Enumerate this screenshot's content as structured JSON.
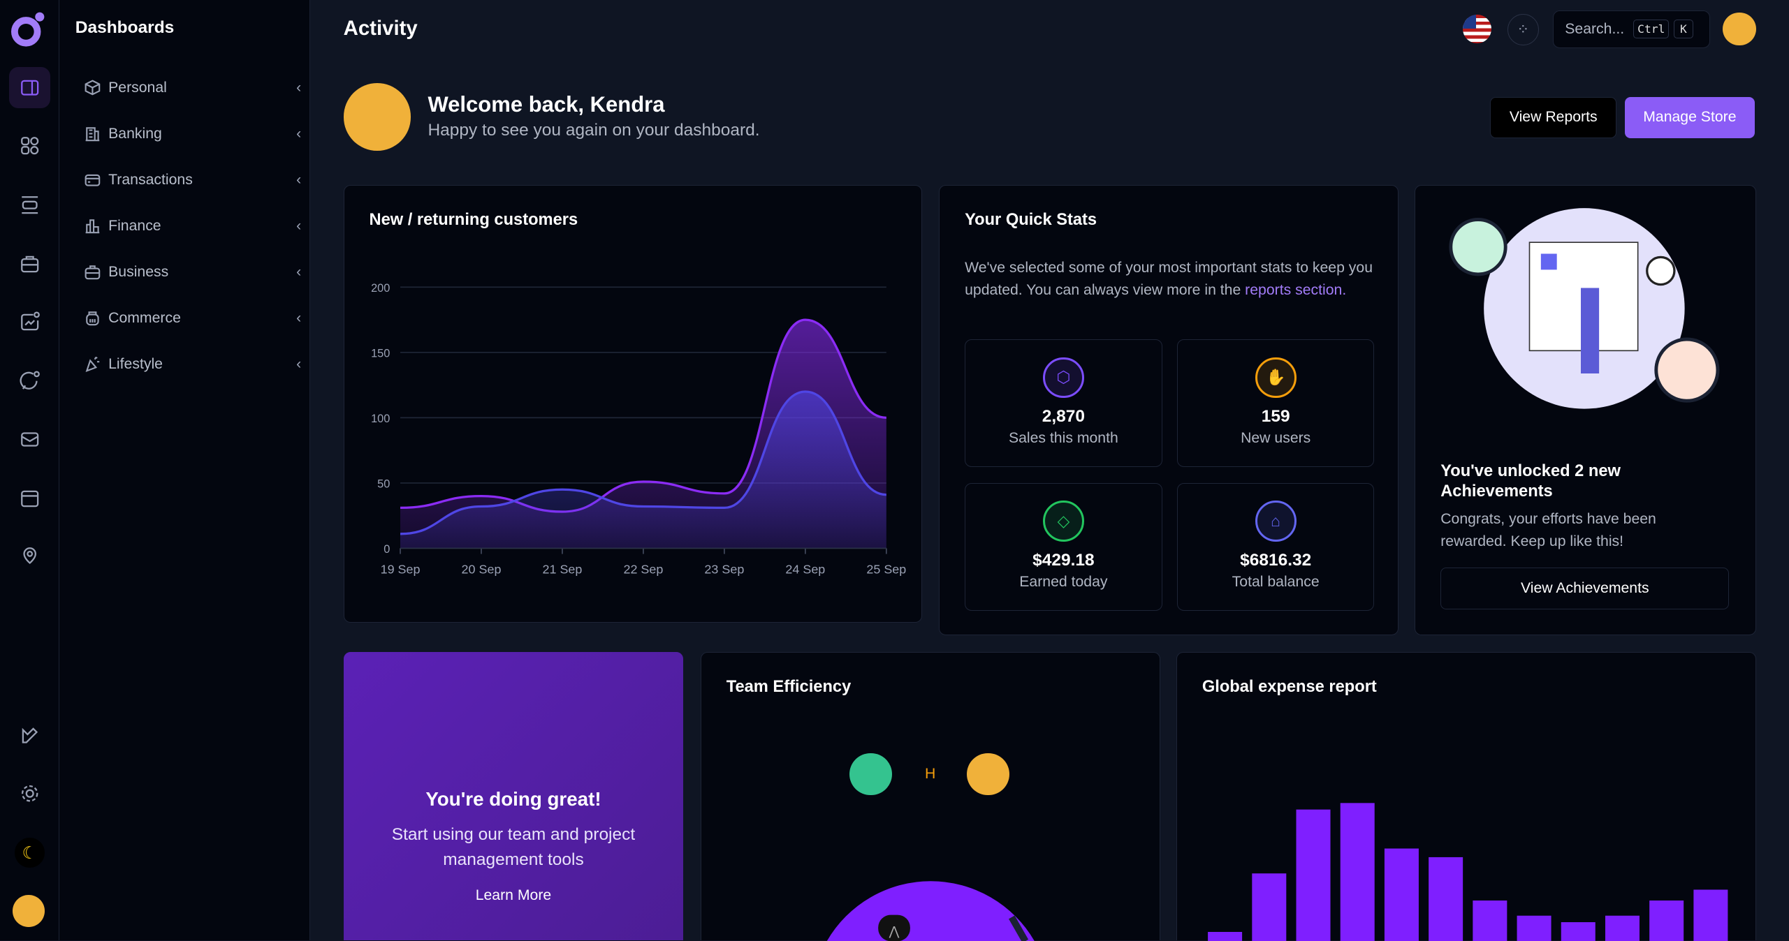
{
  "sidebar": {
    "title": "Dashboards",
    "items": [
      {
        "label": "Personal",
        "icon": "cube-icon"
      },
      {
        "label": "Banking",
        "icon": "building-icon"
      },
      {
        "label": "Transactions",
        "icon": "credit-card-icon"
      },
      {
        "label": "Finance",
        "icon": "bar-chart-icon"
      },
      {
        "label": "Business",
        "icon": "briefcase-icon"
      },
      {
        "label": "Commerce",
        "icon": "basket-icon"
      },
      {
        "label": "Lifestyle",
        "icon": "party-popper-icon"
      }
    ]
  },
  "header": {
    "title": "Activity",
    "search_placeholder": "Search...",
    "shortcut_ctrl": "Ctrl",
    "shortcut_k": "K"
  },
  "welcome": {
    "title": "Welcome back, Kendra",
    "subtitle": "Happy to see you again on your dashboard.",
    "view_reports": "View Reports",
    "manage_store": "Manage Store"
  },
  "colors": {
    "accent": "#8b5cf6",
    "series_a": "#8b2cf5",
    "series_b": "#4f46e5",
    "bar": "#7f1fff"
  },
  "chart_data": [
    {
      "type": "area",
      "title": "New / returning customers",
      "categories": [
        "19 Sep",
        "20 Sep",
        "21 Sep",
        "22 Sep",
        "23 Sep",
        "24 Sep",
        "25 Sep"
      ],
      "ylim": [
        0,
        200
      ],
      "yticks": [
        "0",
        "50",
        "100",
        "150",
        "200"
      ],
      "grid": true,
      "series": [
        {
          "values": [
            31,
            40,
            28,
            51,
            42,
            175,
            100
          ],
          "color": "#8b2cf5"
        },
        {
          "values": [
            11,
            32,
            45,
            32,
            31,
            120,
            41
          ],
          "color": "#4f46e5"
        }
      ]
    },
    {
      "type": "bar",
      "title": "Global expense report",
      "values": [
        18,
        72,
        131,
        137,
        95,
        87,
        47,
        33,
        27,
        33,
        47,
        57
      ]
    }
  ],
  "quick_stats": {
    "title": "Your Quick Stats",
    "desc": "We've selected some of your most important stats to keep you updated. You can always view more in the ",
    "link": "reports section.",
    "items": [
      {
        "value": "2,870",
        "label": "Sales this month",
        "icon": "hexagon-icon",
        "color": "#7c4dff"
      },
      {
        "value": "159",
        "label": "New users",
        "icon": "handshake-icon",
        "color": "#f59e0b"
      },
      {
        "value": "$429.18",
        "label": "Earned today",
        "icon": "diamond-icon",
        "color": "#22c55e"
      },
      {
        "value": "$6816.32",
        "label": "Total balance",
        "icon": "bank-icon",
        "color": "#6366f1"
      }
    ]
  },
  "achievements": {
    "title": "You've unlocked 2 new Achievements",
    "text": "Congrats, your efforts have been rewarded. Keep up like this!",
    "button": "View Achievements"
  },
  "promo": {
    "title": "You're doing great!",
    "text": "Start using our team and project management tools",
    "link": "Learn More"
  },
  "team": {
    "title": "Team Efficiency",
    "initial": "H"
  }
}
